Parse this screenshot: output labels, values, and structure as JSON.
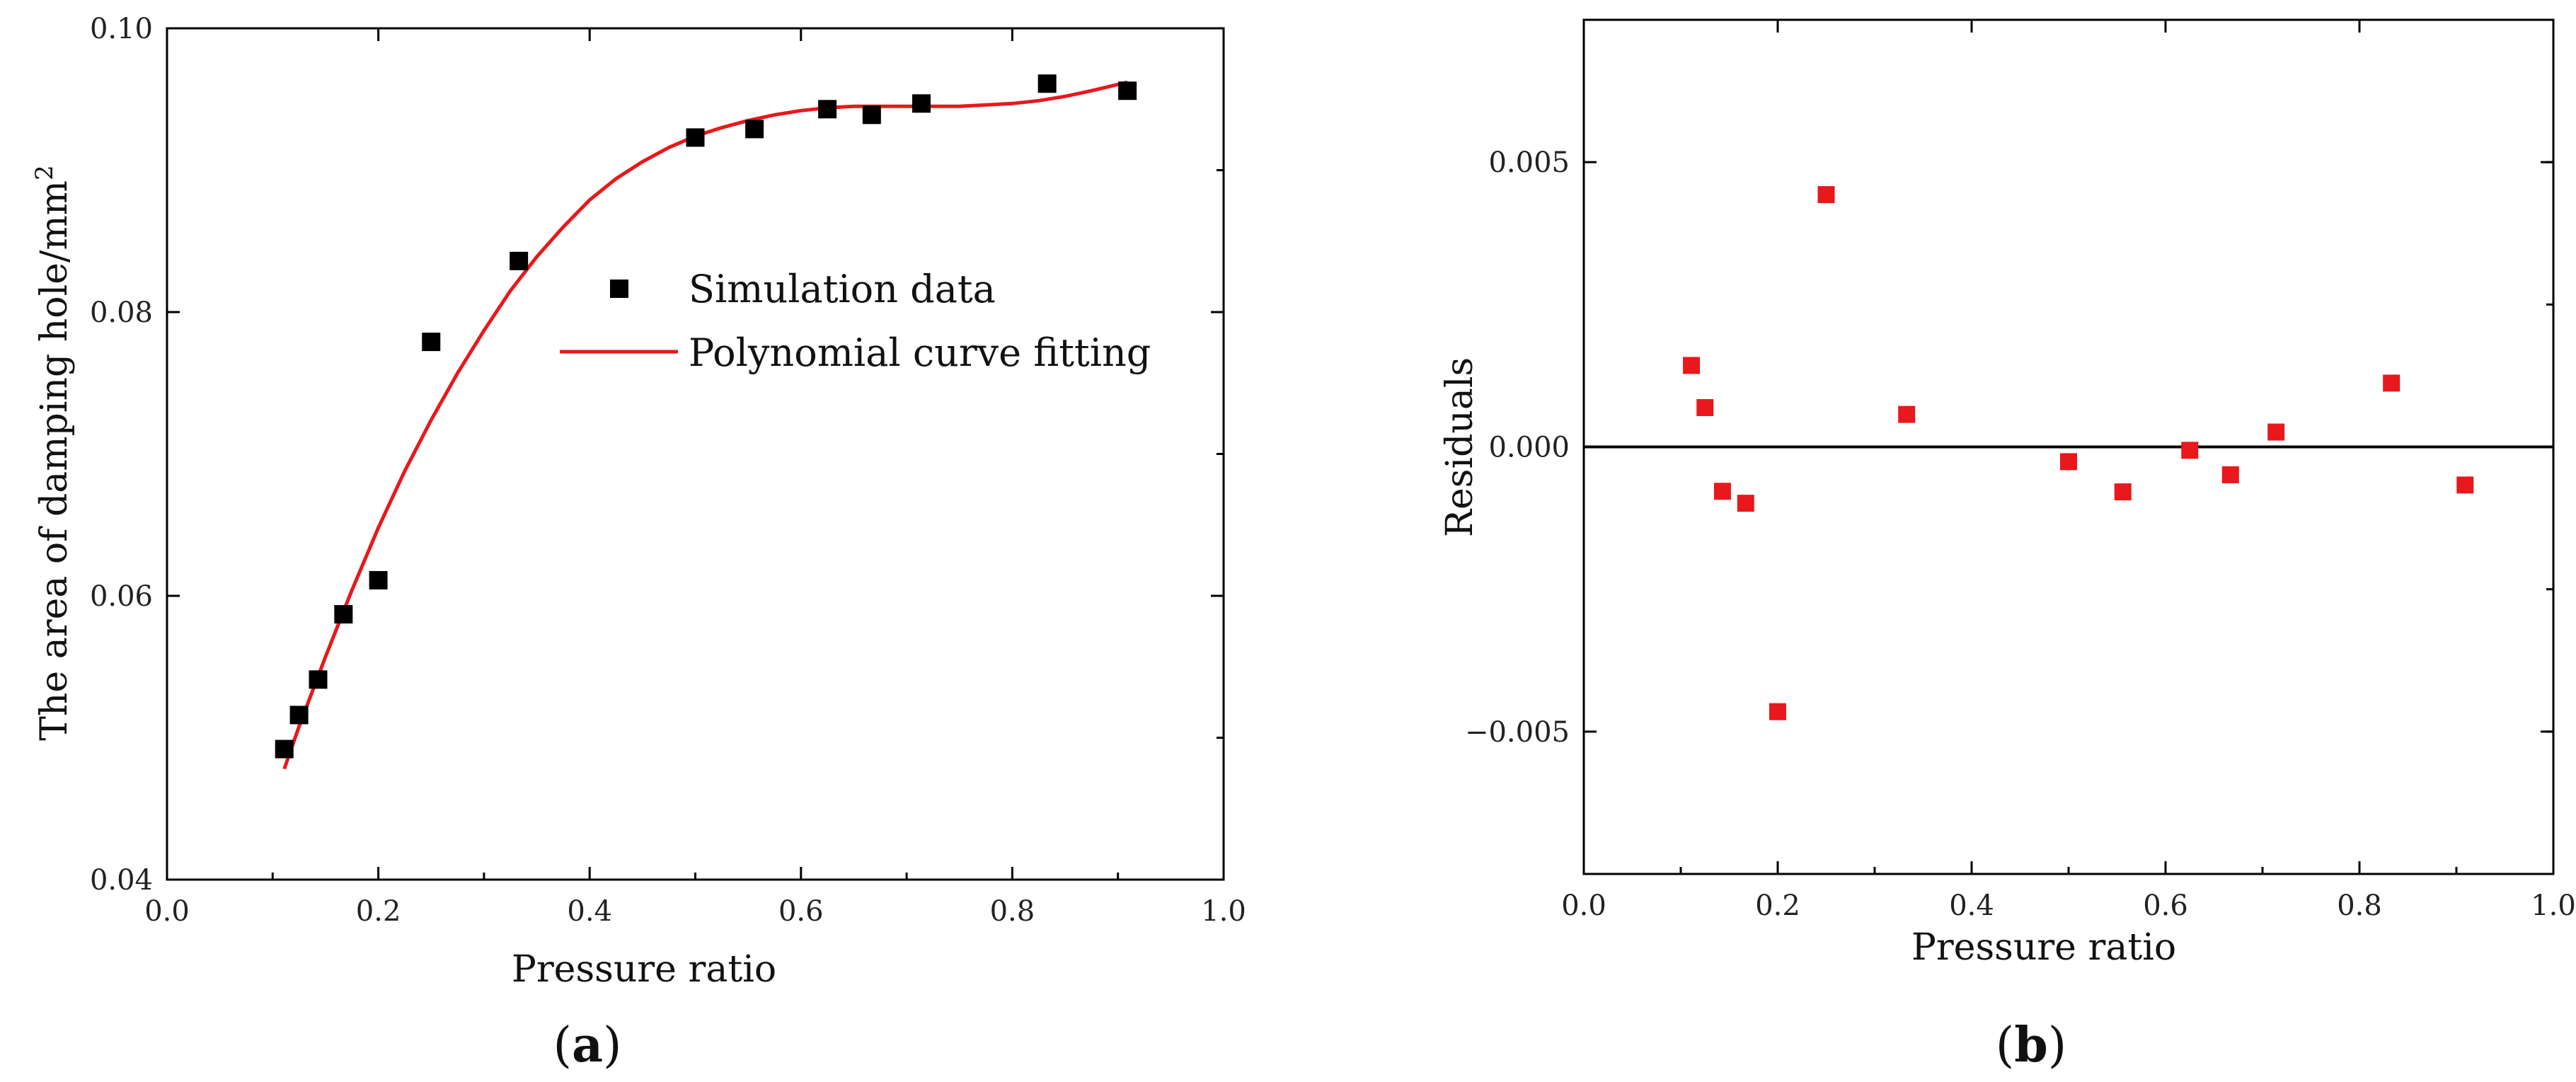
{
  "chart_data": [
    {
      "type": "scatter+line",
      "panel_label": "(a)",
      "panel_letter": "a",
      "xlabel": "Pressure ratio",
      "ylabel": "The area of damping hole/mm",
      "ylabel_superscript": "2",
      "xlim": [
        0.0,
        1.0
      ],
      "ylim": [
        0.04,
        0.1
      ],
      "xticks": [
        0.0,
        0.2,
        0.4,
        0.6,
        0.8,
        1.0
      ],
      "xtick_labels": [
        "0.0",
        "0.2",
        "0.4",
        "0.6",
        "0.8",
        "1.0"
      ],
      "yticks": [
        0.04,
        0.06,
        0.08,
        0.1
      ],
      "ytick_labels": [
        "0.04",
        "0.06",
        "0.08",
        "0.10"
      ],
      "legend_position": "middle-right",
      "series": [
        {
          "name": "Simulation data",
          "kind": "scatter",
          "color": "#000000",
          "x": [
            0.111,
            0.125,
            0.143,
            0.167,
            0.2,
            0.25,
            0.333,
            0.5,
            0.556,
            0.625,
            0.667,
            0.714,
            0.833,
            0.909
          ],
          "y": [
            0.0492,
            0.0516,
            0.0541,
            0.0587,
            0.0611,
            0.0779,
            0.0836,
            0.0923,
            0.0929,
            0.0943,
            0.0939,
            0.0947,
            0.0961,
            0.0956
          ]
        },
        {
          "name": "Polynomial curve fitting",
          "kind": "line",
          "color": "#e8181c",
          "x": [
            0.111,
            0.125,
            0.15,
            0.175,
            0.2,
            0.225,
            0.25,
            0.275,
            0.3,
            0.325,
            0.35,
            0.375,
            0.4,
            0.425,
            0.45,
            0.475,
            0.5,
            0.525,
            0.55,
            0.575,
            0.6,
            0.625,
            0.65,
            0.675,
            0.7,
            0.725,
            0.75,
            0.775,
            0.8,
            0.825,
            0.85,
            0.875,
            0.909
          ],
          "y": [
            0.0478,
            0.0508,
            0.0557,
            0.0604,
            0.0648,
            0.0688,
            0.0724,
            0.0757,
            0.0787,
            0.0815,
            0.0839,
            0.086,
            0.0879,
            0.0894,
            0.0906,
            0.0916,
            0.0924,
            0.093,
            0.0935,
            0.0939,
            0.0942,
            0.0944,
            0.0945,
            0.0945,
            0.0945,
            0.0945,
            0.0945,
            0.0946,
            0.0947,
            0.0949,
            0.0952,
            0.0956,
            0.0962
          ]
        }
      ]
    },
    {
      "type": "scatter",
      "panel_label": "(b)",
      "panel_letter": "b",
      "xlabel": "Pressure ratio",
      "ylabel": "Residuals",
      "xlim": [
        0.0,
        1.0
      ],
      "ylim": [
        -0.0075,
        0.0075
      ],
      "xticks": [
        0.0,
        0.2,
        0.4,
        0.6,
        0.8,
        1.0
      ],
      "xtick_labels": [
        "0.0",
        "0.2",
        "0.4",
        "0.6",
        "0.8",
        "1.0"
      ],
      "yticks": [
        -0.005,
        0.0,
        0.005
      ],
      "ytick_labels": [
        "−0.005",
        "0.000",
        "0.005"
      ],
      "reference_line": 0.0,
      "series": [
        {
          "name": "Residuals",
          "kind": "scatter",
          "color": "#e8181c",
          "x": [
            0.111,
            0.125,
            0.143,
            0.167,
            0.2,
            0.25,
            0.333,
            0.5,
            0.556,
            0.625,
            0.667,
            0.714,
            0.833,
            0.909
          ],
          "y": [
            0.00143,
            0.00069,
            -0.00078,
            -0.00099,
            -0.00465,
            0.00443,
            0.00057,
            -0.00026,
            -0.00079,
            -6e-05,
            -0.00049,
            0.00026,
            0.00112,
            -0.00067
          ]
        }
      ]
    }
  ]
}
